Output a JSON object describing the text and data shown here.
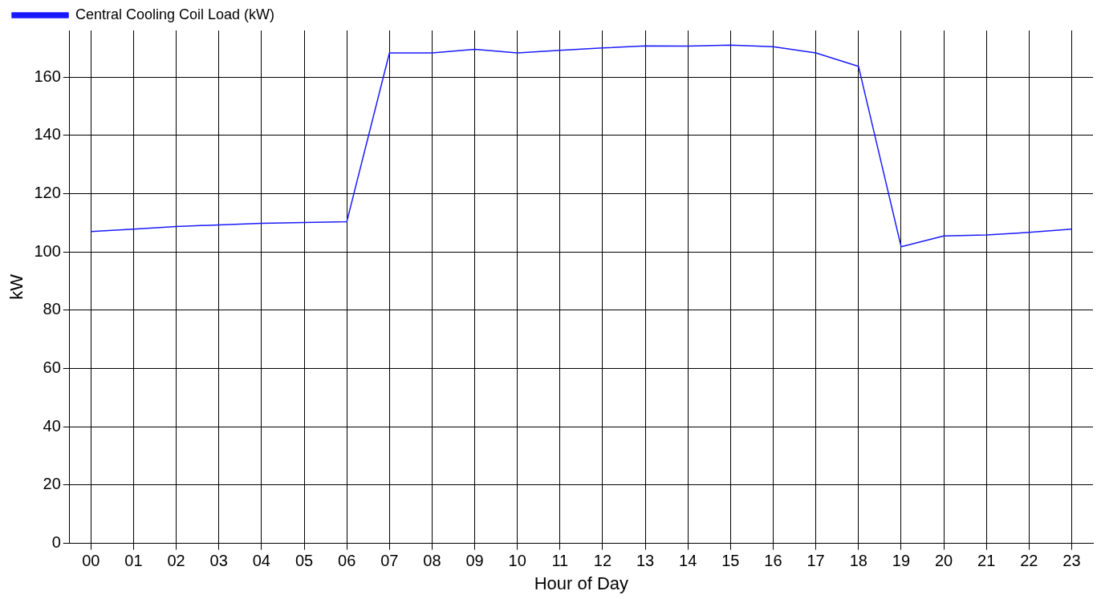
{
  "chart_data": {
    "type": "line",
    "xlabel": "Hour of Day",
    "ylabel": "kW",
    "categories": [
      "00",
      "01",
      "02",
      "03",
      "04",
      "05",
      "06",
      "07",
      "08",
      "09",
      "10",
      "11",
      "12",
      "13",
      "14",
      "15",
      "16",
      "17",
      "18",
      "19",
      "20",
      "21",
      "22",
      "23"
    ],
    "series": [
      {
        "name": "Central Cooling Coil Load (kW)",
        "color": "#1a1aff",
        "values": [
          107,
          107.8,
          108.7,
          109.3,
          109.8,
          110.1,
          110.4,
          168.3,
          168.3,
          169.5,
          168.3,
          169.2,
          170,
          170.7,
          170.6,
          171,
          170.4,
          168.3,
          163.7,
          101.8,
          105.5,
          105.8,
          106.7,
          107.8
        ]
      }
    ],
    "ylim": [
      0,
      176
    ],
    "yticks": [
      0,
      20,
      40,
      60,
      80,
      100,
      120,
      140,
      160
    ],
    "grid": true,
    "legend": "top left",
    "marker": "none",
    "line_style": "solid"
  }
}
